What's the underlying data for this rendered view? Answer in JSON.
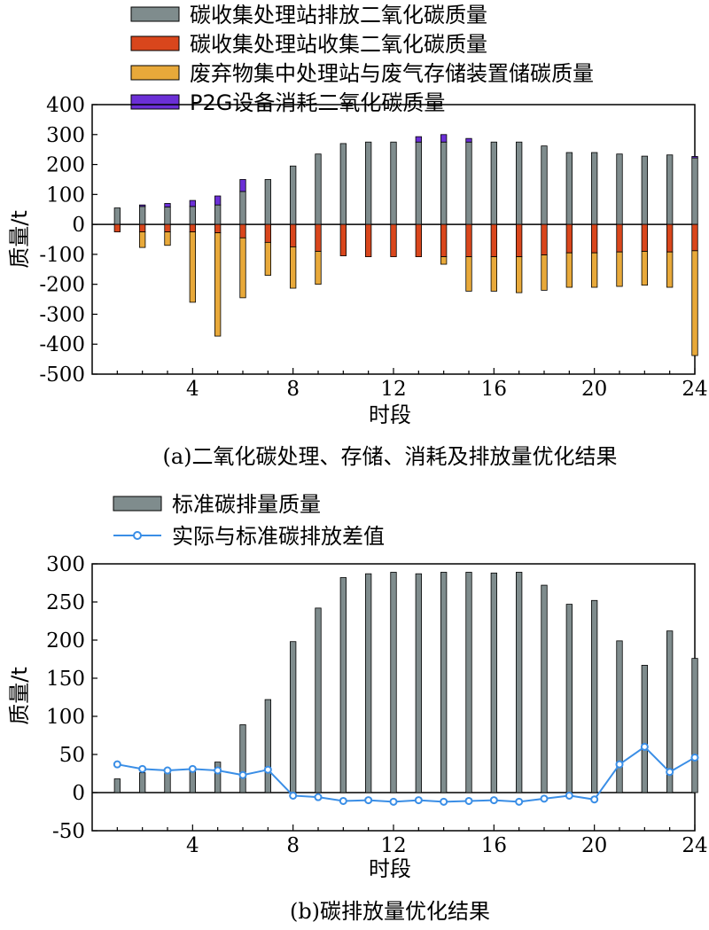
{
  "chart_data": [
    {
      "type": "bar",
      "caption": "(a)二氧化碳处理、存储、消耗及排放量优化结果",
      "xlabel": "时段",
      "ylabel": "质量/t",
      "ylim": [
        -500,
        400
      ],
      "yticks": [
        -500,
        -400,
        -300,
        -200,
        -100,
        0,
        100,
        200,
        300,
        400
      ],
      "xticks": [
        4,
        8,
        12,
        16,
        20,
        24
      ],
      "x": [
        1,
        2,
        3,
        4,
        5,
        6,
        7,
        8,
        9,
        10,
        11,
        12,
        13,
        14,
        15,
        16,
        17,
        18,
        19,
        20,
        21,
        22,
        23,
        24
      ],
      "legend_position": "top",
      "series": [
        {
          "name": "碳收集处理站排放二氧化碳质量",
          "color": "#7f8c8d",
          "values": [
            55,
            60,
            58,
            60,
            65,
            110,
            150,
            195,
            235,
            270,
            275,
            275,
            275,
            275,
            275,
            275,
            275,
            262,
            240,
            240,
            235,
            228,
            232,
            222
          ]
        },
        {
          "name": "碳收集处理站收集二氧化碳质量",
          "color": "#d9461c",
          "values": [
            -25,
            -25,
            -25,
            -25,
            -28,
            -45,
            -60,
            -75,
            -90,
            -105,
            -108,
            -108,
            -108,
            -108,
            -108,
            -108,
            -108,
            -102,
            -95,
            -95,
            -92,
            -90,
            -92,
            -88
          ]
        },
        {
          "name": "废弃物集中处理站与废气存储装置储碳质量",
          "color": "#e8a93a",
          "values": [
            0,
            -52,
            -45,
            -235,
            -345,
            -200,
            -110,
            -138,
            -110,
            0,
            0,
            0,
            0,
            -25,
            -115,
            -115,
            -120,
            -118,
            -115,
            -115,
            -115,
            -113,
            -118,
            -350
          ]
        },
        {
          "name": "P2G设备消耗二氧化碳质量",
          "color": "#6b2fd6",
          "values": [
            0,
            5,
            12,
            20,
            30,
            40,
            0,
            0,
            0,
            0,
            0,
            0,
            18,
            25,
            12,
            0,
            0,
            0,
            0,
            0,
            0,
            0,
            0,
            5
          ]
        }
      ]
    },
    {
      "type": "bar",
      "caption": "(b)碳排放量优化结果",
      "xlabel": "时段",
      "ylabel": "质量/t",
      "ylim": [
        -50,
        300
      ],
      "yticks": [
        -50,
        0,
        50,
        100,
        150,
        200,
        250,
        300
      ],
      "xticks": [
        4,
        8,
        12,
        16,
        20,
        24
      ],
      "x": [
        1,
        2,
        3,
        4,
        5,
        6,
        7,
        8,
        9,
        10,
        11,
        12,
        13,
        14,
        15,
        16,
        17,
        18,
        19,
        20,
        21,
        22,
        23,
        24
      ],
      "legend_position": "top",
      "series": [
        {
          "name": "标准碳排量质量",
          "type": "bar",
          "color": "#7f8c8d",
          "values": [
            18,
            26,
            30,
            32,
            40,
            89,
            122,
            198,
            242,
            282,
            287,
            289,
            287,
            289,
            289,
            288,
            289,
            272,
            247,
            252,
            199,
            167,
            212,
            176
          ]
        },
        {
          "name": "实际与标准碳排放差值",
          "type": "line",
          "color": "#3a8ee6",
          "values": [
            37,
            31,
            29,
            31,
            29,
            23,
            30,
            -4,
            -6,
            -11,
            -10,
            -12,
            -10,
            -12,
            -11,
            -10,
            -12,
            -8,
            -4,
            -9,
            37,
            60,
            27,
            46
          ]
        }
      ]
    }
  ]
}
